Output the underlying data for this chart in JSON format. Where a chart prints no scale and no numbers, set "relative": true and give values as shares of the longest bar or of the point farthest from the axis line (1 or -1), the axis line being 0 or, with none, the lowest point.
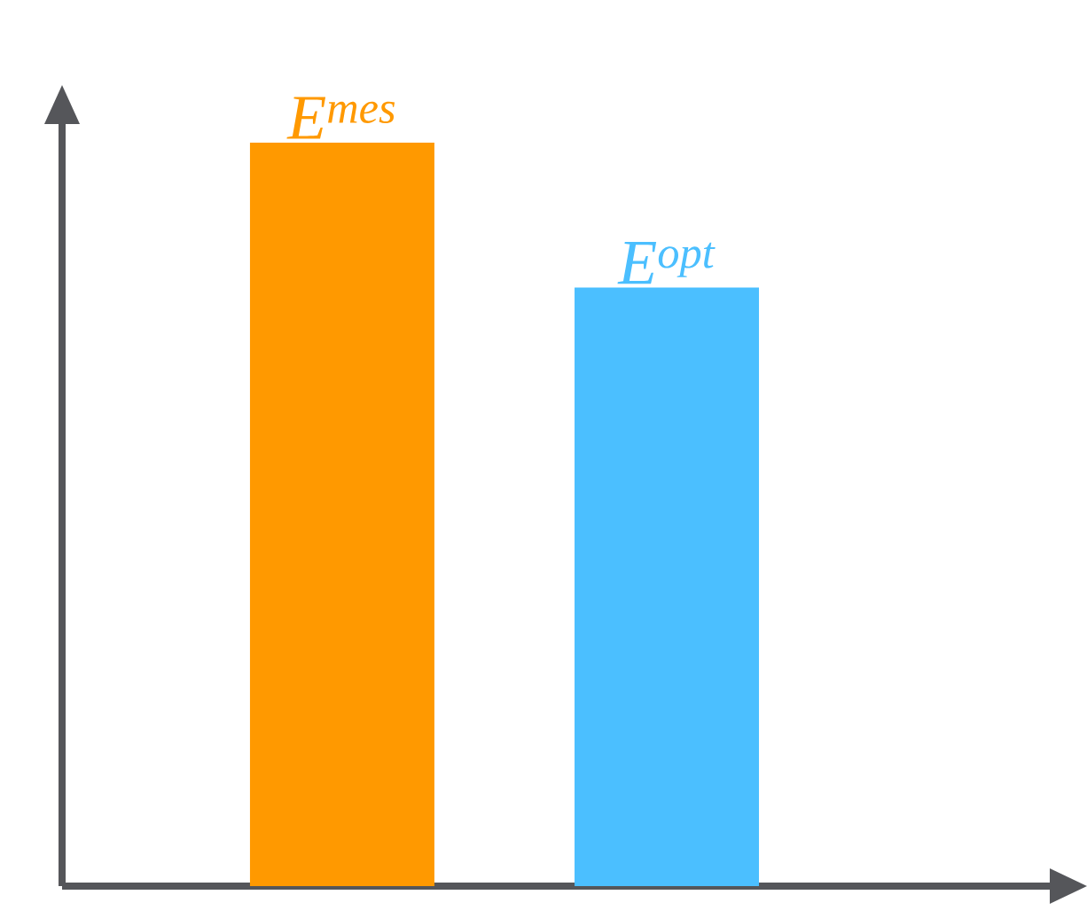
{
  "chart_data": {
    "type": "bar",
    "relative": true,
    "categories": [
      "E$^{mes}$",
      "E$^{opt}$"
    ],
    "values": [
      1,
      0.805
    ],
    "colors": [
      "#ff9900",
      "#4bbfff"
    ]
  }
}
